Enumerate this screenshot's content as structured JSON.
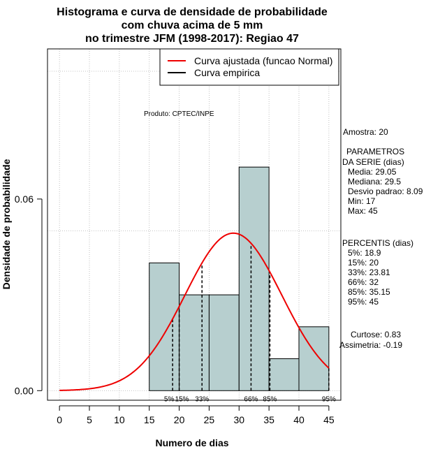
{
  "title_lines": [
    "Histograma e curva de densidade de probabilidade",
    "com chuva acima de 5 mm",
    "no trimestre JFM (1998-2017): Regiao 47"
  ],
  "product_note": "Produto: CPTEC/INPE",
  "legend": [
    {
      "label": "Curva ajustada (funcao Normal)",
      "color": "#ee0000"
    },
    {
      "label": "Curva empirica",
      "color": "#000000"
    }
  ],
  "side_panel": {
    "sample": "Amostra: 20",
    "params_title_1": "PARAMETROS",
    "params_title_2": "DA SERIE (dias)",
    "params": [
      "Media: 29.05",
      "Mediana: 29.5",
      "Desvio padrao: 8.09",
      "Min: 17",
      "Max: 45"
    ],
    "percentiles_title": "PERCENTIS (dias)",
    "percentiles": [
      "5%: 18.9",
      "15%: 20",
      "33%: 23.81",
      "66%: 32",
      "85%: 35.15",
      "95%: 45"
    ],
    "kurtosis": "Curtose: 0.83",
    "skewness": "Assimetria: -0.19"
  },
  "colors": {
    "bar_fill": "#b7cfcf",
    "bar_stroke": "#000000",
    "curve": "#ee0000",
    "grid": "#b0b0b0"
  },
  "chart_data": {
    "type": "bar",
    "title": "Histograma e curva de densidade de probabilidade com chuva acima de 5 mm no trimestre JFM (1998-2017): Regiao 47",
    "xlabel": "Numero de dias",
    "ylabel": "Densidade de probabilidade",
    "xlim": [
      -2,
      47
    ],
    "ylim": [
      -0.003,
      0.107
    ],
    "x_ticks": [
      0,
      5,
      10,
      15,
      20,
      25,
      30,
      35,
      40,
      45
    ],
    "y_ticks": [
      0.0,
      0.06
    ],
    "y_tick_labels": [
      "0.00",
      "0.06"
    ],
    "x_grid": [
      0,
      5,
      10,
      15,
      20,
      25,
      30,
      35,
      40,
      45
    ],
    "y_grid": [
      0.0,
      0.05,
      0.1
    ],
    "bins": [
      {
        "x0": 15,
        "x1": 20,
        "density": 0.04
      },
      {
        "x0": 20,
        "x1": 25,
        "density": 0.03
      },
      {
        "x0": 25,
        "x1": 30,
        "density": 0.03
      },
      {
        "x0": 30,
        "x1": 35,
        "density": 0.07
      },
      {
        "x0": 35,
        "x1": 40,
        "density": 0.01
      },
      {
        "x0": 40,
        "x1": 45,
        "density": 0.02
      }
    ],
    "normal_fit": {
      "mean": 29.05,
      "sd": 8.09,
      "x_from": 0,
      "x_to": 45
    },
    "percentile_lines": [
      {
        "label": "5%",
        "x": 18.9
      },
      {
        "label": "15%",
        "x": 20
      },
      {
        "label": "33%",
        "x": 23.81
      },
      {
        "label": "66%",
        "x": 32
      },
      {
        "label": "85%",
        "x": 35.15
      },
      {
        "label": "95%",
        "x": 45
      }
    ],
    "legend_position": "top-right",
    "grid": true
  }
}
